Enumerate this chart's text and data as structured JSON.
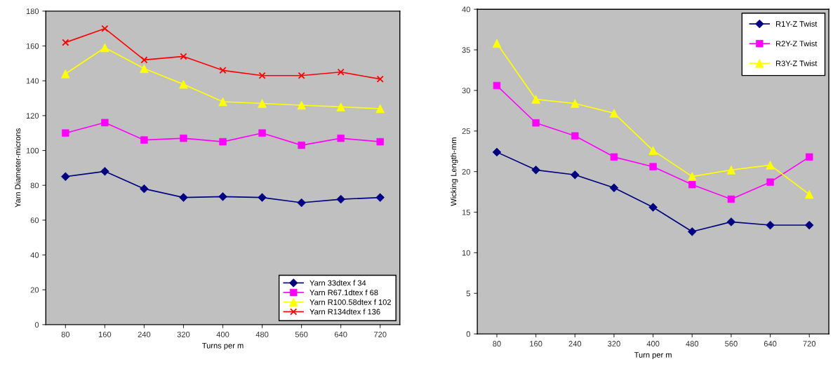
{
  "chart_data": [
    {
      "type": "line",
      "xlabel": "Turns per m",
      "ylabel": "Yarn Diameter-microns",
      "categories": [
        "80",
        "160",
        "240",
        "320",
        "400",
        "480",
        "560",
        "640",
        "720"
      ],
      "ylim": [
        0,
        180
      ],
      "yticks": [
        0,
        20,
        40,
        60,
        80,
        100,
        120,
        140,
        160,
        180
      ],
      "grid": false,
      "legend": "bottom right",
      "series": [
        {
          "name": "Yarn 33dtex f 34",
          "color": "#000080",
          "marker": "diamond",
          "values": [
            85,
            88,
            78,
            73,
            73.5,
            73,
            70,
            72,
            73
          ]
        },
        {
          "name": "Yarn R67.1dtex f 68",
          "color": "#ff00ff",
          "marker": "square",
          "values": [
            110,
            116,
            106,
            107,
            105,
            110,
            103,
            107,
            105
          ]
        },
        {
          "name": "Yarn R100.58dtex f 102",
          "color": "#ffff00",
          "marker": "triangle",
          "values": [
            144,
            159,
            147,
            138,
            128,
            127,
            126,
            125,
            124
          ]
        },
        {
          "name": "Yarn R134dtex f 136",
          "color": "#ff0000",
          "marker": "cross",
          "values": [
            162,
            170,
            152,
            154,
            146,
            143,
            143,
            145,
            141
          ]
        }
      ]
    },
    {
      "type": "line",
      "xlabel": "Turn per m",
      "ylabel": "Wicking Length-mm",
      "categories": [
        "80",
        "160",
        "240",
        "320",
        "400",
        "480",
        "560",
        "640",
        "720"
      ],
      "ylim": [
        0,
        40
      ],
      "yticks": [
        0,
        5,
        10,
        15,
        20,
        25,
        30,
        35,
        40
      ],
      "grid": false,
      "legend": "top right",
      "series": [
        {
          "name": "R1Y-Z Twist",
          "color": "#000080",
          "marker": "diamond",
          "values": [
            22.4,
            20.2,
            19.6,
            18,
            15.6,
            12.6,
            13.8,
            13.4,
            13.4
          ]
        },
        {
          "name": "R2Y-Z Twist",
          "color": "#ff00ff",
          "marker": "square",
          "values": [
            30.6,
            26,
            24.4,
            21.8,
            20.6,
            18.4,
            16.6,
            18.7,
            21.8
          ]
        },
        {
          "name": "R3Y-Z Twist",
          "color": "#ffff00",
          "marker": "triangle",
          "values": [
            35.8,
            28.9,
            28.4,
            27.2,
            22.6,
            19.4,
            20.2,
            20.8,
            17.2
          ]
        }
      ]
    }
  ]
}
